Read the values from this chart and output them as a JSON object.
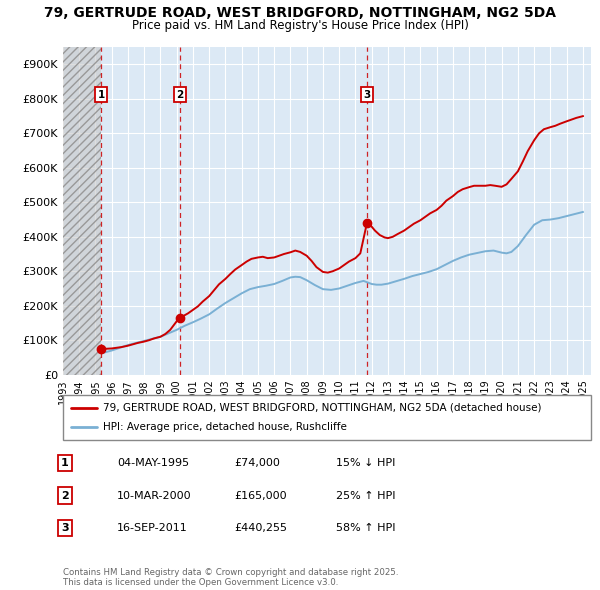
{
  "title": "79, GERTRUDE ROAD, WEST BRIDGFORD, NOTTINGHAM, NG2 5DA",
  "subtitle": "Price paid vs. HM Land Registry's House Price Index (HPI)",
  "ylim": [
    0,
    950000
  ],
  "xlim_start": 1993.0,
  "xlim_end": 2025.5,
  "yticks": [
    0,
    100000,
    200000,
    300000,
    400000,
    500000,
    600000,
    700000,
    800000,
    900000
  ],
  "ytick_labels": [
    "£0",
    "£100K",
    "£200K",
    "£300K",
    "£400K",
    "£500K",
    "£600K",
    "£700K",
    "£800K",
    "£900K"
  ],
  "xticks": [
    1993,
    1994,
    1995,
    1996,
    1997,
    1998,
    1999,
    2000,
    2001,
    2002,
    2003,
    2004,
    2005,
    2006,
    2007,
    2008,
    2009,
    2010,
    2011,
    2012,
    2013,
    2014,
    2015,
    2016,
    2017,
    2018,
    2019,
    2020,
    2021,
    2022,
    2023,
    2024,
    2025
  ],
  "hatch_end_year": 1995.35,
  "sale_points": [
    {
      "year": 1995.35,
      "price": 74000,
      "label": "1",
      "date": "04-MAY-1995",
      "price_str": "£74,000",
      "hpi_str": "15% ↓ HPI"
    },
    {
      "year": 2000.19,
      "price": 165000,
      "label": "2",
      "date": "10-MAR-2000",
      "price_str": "£165,000",
      "hpi_str": "25% ↑ HPI"
    },
    {
      "year": 2011.71,
      "price": 440255,
      "label": "3",
      "date": "16-SEP-2011",
      "price_str": "£440,255",
      "hpi_str": "58% ↑ HPI"
    }
  ],
  "legend1": "79, GERTRUDE ROAD, WEST BRIDGFORD, NOTTINGHAM, NG2 5DA (detached house)",
  "legend2": "HPI: Average price, detached house, Rushcliffe",
  "footnote": "Contains HM Land Registry data © Crown copyright and database right 2025.\nThis data is licensed under the Open Government Licence v3.0.",
  "red_color": "#cc0000",
  "blue_color": "#7ab0d4",
  "bg_color": "#dce9f5",
  "grid_color": "#ffffff",
  "hpi_line": {
    "years": [
      1995.35,
      1995.6,
      1996.0,
      1996.5,
      1997.0,
      1997.5,
      1998.0,
      1998.5,
      1999.0,
      1999.5,
      2000.0,
      2000.5,
      2001.0,
      2001.5,
      2002.0,
      2002.5,
      2003.0,
      2003.5,
      2004.0,
      2004.5,
      2005.0,
      2005.5,
      2006.0,
      2006.5,
      2007.0,
      2007.3,
      2007.6,
      2008.0,
      2008.5,
      2009.0,
      2009.5,
      2010.0,
      2010.5,
      2011.0,
      2011.5,
      2012.0,
      2012.3,
      2012.6,
      2013.0,
      2013.5,
      2014.0,
      2014.5,
      2015.0,
      2015.5,
      2016.0,
      2016.5,
      2017.0,
      2017.5,
      2018.0,
      2018.5,
      2019.0,
      2019.5,
      2020.0,
      2020.3,
      2020.6,
      2021.0,
      2021.5,
      2022.0,
      2022.5,
      2023.0,
      2023.5,
      2024.0,
      2024.5,
      2025.0
    ],
    "values": [
      64000,
      65000,
      70000,
      78000,
      86000,
      92000,
      98000,
      104000,
      110000,
      120000,
      130000,
      142000,
      152000,
      163000,
      175000,
      192000,
      208000,
      222000,
      236000,
      248000,
      254000,
      258000,
      263000,
      272000,
      282000,
      284000,
      283000,
      274000,
      260000,
      248000,
      246000,
      250000,
      258000,
      266000,
      272000,
      263000,
      261000,
      261000,
      264000,
      271000,
      278000,
      286000,
      292000,
      298000,
      306000,
      318000,
      330000,
      340000,
      348000,
      353000,
      358000,
      360000,
      354000,
      352000,
      356000,
      373000,
      405000,
      435000,
      448000,
      450000,
      454000,
      460000,
      466000,
      472000
    ]
  },
  "price_line": {
    "years": [
      1995.35,
      1995.6,
      1996.0,
      1996.3,
      1996.6,
      1997.0,
      1997.3,
      1997.6,
      1998.0,
      1998.3,
      1998.6,
      1999.0,
      1999.3,
      1999.6,
      2000.0,
      2000.19,
      2000.4,
      2000.7,
      2001.0,
      2001.3,
      2001.6,
      2002.0,
      2002.3,
      2002.6,
      2003.0,
      2003.3,
      2003.6,
      2004.0,
      2004.3,
      2004.6,
      2005.0,
      2005.3,
      2005.6,
      2006.0,
      2006.3,
      2006.6,
      2007.0,
      2007.3,
      2007.6,
      2008.0,
      2008.3,
      2008.6,
      2009.0,
      2009.3,
      2009.6,
      2010.0,
      2010.3,
      2010.6,
      2011.0,
      2011.3,
      2011.71,
      2011.9,
      2012.2,
      2012.5,
      2012.8,
      2013.0,
      2013.3,
      2013.6,
      2014.0,
      2014.3,
      2014.6,
      2015.0,
      2015.3,
      2015.6,
      2016.0,
      2016.3,
      2016.6,
      2017.0,
      2017.3,
      2017.6,
      2018.0,
      2018.3,
      2018.6,
      2019.0,
      2019.3,
      2019.6,
      2020.0,
      2020.3,
      2020.6,
      2021.0,
      2021.3,
      2021.6,
      2022.0,
      2022.3,
      2022.6,
      2023.0,
      2023.3,
      2023.6,
      2024.0,
      2024.3,
      2024.6,
      2025.0
    ],
    "values": [
      74000,
      75000,
      76000,
      78000,
      80000,
      84000,
      88000,
      92000,
      96000,
      100000,
      105000,
      110000,
      118000,
      130000,
      155000,
      165000,
      170000,
      178000,
      188000,
      198000,
      212000,
      228000,
      245000,
      262000,
      278000,
      292000,
      305000,
      318000,
      328000,
      336000,
      340000,
      342000,
      338000,
      340000,
      345000,
      350000,
      355000,
      360000,
      356000,
      345000,
      330000,
      312000,
      298000,
      296000,
      300000,
      308000,
      318000,
      328000,
      338000,
      352000,
      440255,
      435000,
      418000,
      405000,
      398000,
      396000,
      400000,
      408000,
      418000,
      428000,
      438000,
      448000,
      458000,
      468000,
      478000,
      490000,
      505000,
      518000,
      530000,
      538000,
      544000,
      548000,
      548000,
      548000,
      550000,
      548000,
      545000,
      552000,
      568000,
      590000,
      618000,
      648000,
      680000,
      700000,
      712000,
      718000,
      722000,
      728000,
      735000,
      740000,
      745000,
      750000
    ]
  }
}
